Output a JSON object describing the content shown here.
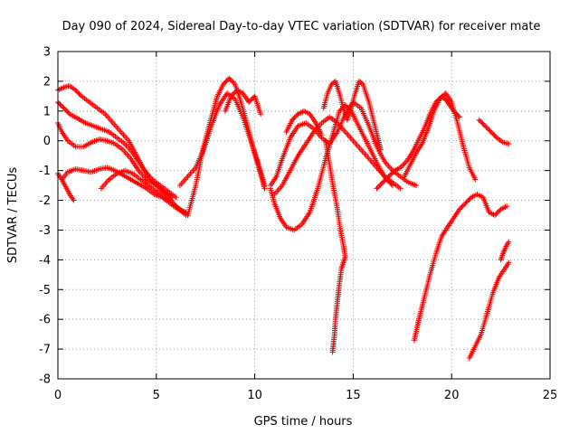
{
  "chart_data": {
    "type": "scatter",
    "title": "Day 090 of 2024, Sidereal Day-to-day VTEC variation (SDTVAR) for receiver mate",
    "xlabel": "GPS time / hours",
    "ylabel": "SDTVAR / TECUs",
    "xlim": [
      0,
      25
    ],
    "ylim": [
      -8,
      3
    ],
    "xticks": [
      0,
      5,
      10,
      15,
      20,
      25
    ],
    "yticks": [
      -8,
      -7,
      -6,
      -5,
      -4,
      -3,
      -2,
      -1,
      0,
      1,
      2,
      3
    ],
    "grid": true,
    "marker": "+",
    "color": "#ff0000",
    "series": [
      {
        "name": "trace-1",
        "x": [
          0.0,
          0.3,
          0.6,
          0.9,
          1.2,
          1.6,
          2.0,
          2.4,
          2.8,
          3.2,
          3.6,
          4.0,
          4.4,
          4.8,
          5.2,
          5.6,
          6.0
        ],
        "y": [
          1.7,
          1.8,
          1.85,
          1.7,
          1.5,
          1.3,
          1.1,
          0.9,
          0.6,
          0.3,
          0.0,
          -0.5,
          -1.0,
          -1.3,
          -1.5,
          -1.7,
          -1.9
        ]
      },
      {
        "name": "trace-2",
        "x": [
          0.0,
          0.3,
          0.6,
          1.0,
          1.4,
          1.8,
          2.2,
          2.6,
          3.0,
          3.4,
          3.8,
          4.2,
          4.6,
          5.0,
          5.4,
          5.8
        ],
        "y": [
          1.3,
          1.1,
          0.9,
          0.75,
          0.6,
          0.5,
          0.4,
          0.3,
          0.1,
          -0.1,
          -0.4,
          -0.8,
          -1.2,
          -1.5,
          -1.7,
          -1.9
        ]
      },
      {
        "name": "trace-3",
        "x": [
          0.0,
          0.2,
          0.5,
          0.9,
          1.3,
          1.7,
          2.1,
          2.5,
          2.9,
          3.3,
          3.7,
          4.1,
          4.5,
          5.0,
          5.5,
          6.0,
          6.5
        ],
        "y": [
          0.6,
          0.3,
          0.0,
          -0.2,
          -0.2,
          -0.05,
          0.05,
          0.0,
          -0.1,
          -0.3,
          -0.6,
          -1.0,
          -1.3,
          -1.5,
          -1.8,
          -2.2,
          -2.5
        ]
      },
      {
        "name": "trace-4",
        "x": [
          0.2,
          0.5,
          0.9,
          1.3,
          1.7,
          2.1,
          2.5,
          2.9,
          3.3,
          3.7,
          4.1,
          4.5,
          4.9,
          5.3,
          5.7,
          6.1,
          6.5
        ],
        "y": [
          -1.3,
          -1.05,
          -0.95,
          -1.0,
          -1.05,
          -0.95,
          -0.9,
          -1.0,
          -1.15,
          -1.3,
          -1.45,
          -1.6,
          -1.8,
          -1.9,
          -2.1,
          -2.3,
          -2.4
        ]
      },
      {
        "name": "trace-5",
        "x": [
          0.0,
          0.2,
          0.4,
          0.6,
          0.8
        ],
        "y": [
          -1.1,
          -1.3,
          -1.55,
          -1.8,
          -2.0
        ]
      },
      {
        "name": "trace-6",
        "x": [
          2.2,
          2.6,
          3.0,
          3.4,
          3.8,
          4.2,
          4.6,
          5.0,
          5.4,
          5.8,
          6.2,
          6.6
        ],
        "y": [
          -1.6,
          -1.3,
          -1.1,
          -1.0,
          -1.1,
          -1.3,
          -1.5,
          -1.7,
          -1.9,
          -2.1,
          -2.3,
          -2.5
        ]
      },
      {
        "name": "trace-7",
        "x": [
          6.6,
          7.0,
          7.4,
          7.8,
          8.1,
          8.4,
          8.7,
          9.0,
          9.3,
          9.6,
          9.9,
          10.2,
          10.5
        ],
        "y": [
          -2.5,
          -1.5,
          -0.2,
          0.8,
          1.5,
          1.9,
          2.1,
          1.9,
          1.3,
          0.6,
          -0.2,
          -0.9,
          -1.6
        ]
      },
      {
        "name": "trace-8",
        "x": [
          6.2,
          6.6,
          7.0,
          7.4,
          7.8,
          8.2,
          8.6,
          9.0,
          9.4,
          9.8,
          10.2,
          10.5
        ],
        "y": [
          -1.5,
          -1.2,
          -0.9,
          -0.3,
          0.5,
          1.2,
          1.6,
          1.4,
          0.8,
          0.0,
          -0.8,
          -1.5
        ]
      },
      {
        "name": "trace-9",
        "x": [
          8.5,
          8.8,
          9.1,
          9.4,
          9.7,
          10.0,
          10.3
        ],
        "y": [
          1.0,
          1.5,
          1.7,
          1.6,
          1.3,
          1.5,
          0.9
        ]
      },
      {
        "name": "trace-10",
        "x": [
          10.8,
          11.0,
          11.3,
          11.6,
          12.0,
          12.4,
          12.8,
          13.2,
          13.6,
          14.0,
          14.3,
          14.6,
          14.9,
          15.2,
          15.5,
          15.8,
          16.1,
          16.4,
          16.7,
          17.0
        ],
        "y": [
          -1.6,
          -2.1,
          -2.6,
          -2.9,
          -3.0,
          -2.8,
          -2.4,
          -1.6,
          -0.6,
          0.3,
          1.0,
          1.2,
          1.0,
          0.6,
          0.2,
          -0.2,
          -0.6,
          -1.0,
          -1.3,
          -1.5
        ]
      },
      {
        "name": "trace-11",
        "x": [
          10.8,
          11.1,
          11.4,
          11.8,
          12.2,
          12.6,
          13.0,
          13.4,
          13.8,
          14.2,
          14.6,
          15.0,
          15.4,
          15.8,
          16.2,
          16.6,
          17.0,
          17.4,
          17.8,
          18.2
        ],
        "y": [
          -1.5,
          -1.2,
          -0.6,
          0.1,
          0.5,
          0.6,
          0.4,
          0.1,
          -0.1,
          0.3,
          0.9,
          1.3,
          1.1,
          0.5,
          -0.2,
          -0.7,
          -1.0,
          -1.2,
          -1.4,
          -1.5
        ]
      },
      {
        "name": "trace-12",
        "x": [
          11.0,
          11.4,
          11.8,
          12.2,
          12.6,
          13.0,
          13.4,
          13.8,
          14.2,
          14.6,
          15.0,
          15.4,
          15.8,
          16.2,
          16.6,
          17.0,
          17.4
        ],
        "y": [
          -1.8,
          -1.5,
          -1.0,
          -0.5,
          -0.1,
          0.3,
          0.6,
          0.8,
          0.6,
          0.3,
          0.0,
          -0.3,
          -0.6,
          -0.9,
          -1.2,
          -1.4,
          -1.6
        ]
      },
      {
        "name": "trace-13",
        "x": [
          11.6,
          11.9,
          12.2,
          12.5,
          12.8,
          13.1,
          13.4
        ],
        "y": [
          0.3,
          0.7,
          0.9,
          1.0,
          0.9,
          0.6,
          0.2
        ]
      },
      {
        "name": "trace-14",
        "x": [
          13.5,
          13.7,
          13.9,
          14.1,
          14.3,
          14.5,
          14.7,
          14.9,
          15.1,
          15.3,
          15.5,
          15.8,
          16.1,
          16.4
        ],
        "y": [
          1.1,
          1.6,
          1.9,
          2.0,
          1.6,
          1.1,
          0.7,
          1.1,
          1.6,
          2.0,
          1.9,
          1.3,
          0.5,
          -0.3
        ]
      },
      {
        "name": "trace-15",
        "x": [
          13.6,
          13.8,
          14.0,
          14.2,
          14.35,
          14.5,
          14.6
        ],
        "y": [
          0.0,
          -0.8,
          -1.6,
          -2.3,
          -3.0,
          -3.5,
          -3.9
        ]
      },
      {
        "name": "trace-16",
        "x": [
          14.6,
          14.5,
          14.4,
          14.3,
          14.2,
          14.1,
          14.05,
          14.0,
          13.95
        ],
        "y": [
          -3.9,
          -4.1,
          -4.3,
          -4.8,
          -5.4,
          -6.0,
          -6.5,
          -6.8,
          -7.1
        ]
      },
      {
        "name": "trace-17",
        "x": [
          16.2,
          16.5,
          16.8,
          17.1,
          17.4,
          17.7,
          18.0,
          18.3,
          18.6,
          18.9,
          19.2,
          19.5,
          19.8,
          20.1,
          20.4
        ],
        "y": [
          -1.6,
          -1.4,
          -1.2,
          -1.0,
          -0.9,
          -0.7,
          -0.4,
          0.0,
          0.4,
          0.9,
          1.3,
          1.5,
          1.3,
          1.0,
          0.8
        ]
      },
      {
        "name": "trace-18",
        "x": [
          17.6,
          17.9,
          18.2,
          18.5,
          18.8,
          19.1,
          19.4,
          19.7,
          20.0,
          20.3,
          20.6,
          20.9,
          21.2
        ],
        "y": [
          -1.2,
          -0.8,
          -0.4,
          -0.1,
          0.4,
          1.0,
          1.4,
          1.6,
          1.3,
          0.6,
          -0.2,
          -0.9,
          -1.3
        ]
      },
      {
        "name": "trace-19",
        "x": [
          18.1,
          18.3,
          18.6,
          18.9,
          19.2,
          19.5,
          19.8,
          20.1,
          20.4,
          20.7,
          21.0,
          21.3,
          21.6,
          21.9,
          22.2,
          22.5,
          22.8
        ],
        "y": [
          -6.7,
          -6.1,
          -5.3,
          -4.5,
          -3.8,
          -3.2,
          -2.9,
          -2.6,
          -2.3,
          -2.1,
          -1.9,
          -1.8,
          -1.9,
          -2.4,
          -2.5,
          -2.3,
          -2.2
        ]
      },
      {
        "name": "trace-20",
        "x": [
          20.9,
          21.2,
          21.5,
          21.8,
          22.1,
          22.4,
          22.7,
          22.9
        ],
        "y": [
          -7.3,
          -6.9,
          -6.5,
          -5.8,
          -5.1,
          -4.6,
          -4.3,
          -4.1
        ]
      },
      {
        "name": "trace-21",
        "x": [
          21.4,
          21.7,
          22.0,
          22.3,
          22.6,
          22.9
        ],
        "y": [
          0.7,
          0.5,
          0.3,
          0.1,
          -0.05,
          -0.1
        ]
      },
      {
        "name": "trace-22",
        "x": [
          22.5,
          22.6,
          22.7,
          22.8,
          22.9
        ],
        "y": [
          -4.0,
          -3.8,
          -3.65,
          -3.5,
          -3.4
        ]
      }
    ]
  }
}
